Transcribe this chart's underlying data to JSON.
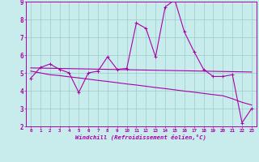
{
  "xlabel": "Windchill (Refroidissement éolien,°C)",
  "x": [
    0,
    1,
    2,
    3,
    4,
    5,
    6,
    7,
    8,
    9,
    10,
    11,
    12,
    13,
    14,
    15,
    16,
    17,
    18,
    19,
    20,
    21,
    22,
    23
  ],
  "y_main": [
    4.7,
    5.3,
    5.5,
    5.2,
    5.0,
    3.9,
    5.0,
    5.1,
    5.9,
    5.2,
    5.25,
    7.8,
    7.5,
    5.9,
    8.7,
    9.1,
    7.3,
    6.2,
    5.2,
    4.8,
    4.8,
    4.9,
    2.2,
    3.0
  ],
  "y_trend1": [
    5.28,
    5.27,
    5.26,
    5.25,
    5.24,
    5.23,
    5.22,
    5.21,
    5.2,
    5.19,
    5.18,
    5.17,
    5.16,
    5.15,
    5.14,
    5.13,
    5.12,
    5.11,
    5.1,
    5.09,
    5.08,
    5.07,
    5.06,
    5.05
  ],
  "y_trend2": [
    5.1,
    5.0,
    4.9,
    4.85,
    4.78,
    4.72,
    4.65,
    4.58,
    4.52,
    4.45,
    4.38,
    4.32,
    4.25,
    4.18,
    4.12,
    4.05,
    3.98,
    3.92,
    3.85,
    3.78,
    3.72,
    3.55,
    3.35,
    3.2
  ],
  "line_color": "#aa00aa",
  "bg_color": "#c8ecec",
  "grid_color": "#99cccc",
  "ylim": [
    2,
    9
  ],
  "xlim": [
    -0.5,
    23.5
  ],
  "yticks": [
    2,
    3,
    4,
    5,
    6,
    7,
    8,
    9
  ]
}
